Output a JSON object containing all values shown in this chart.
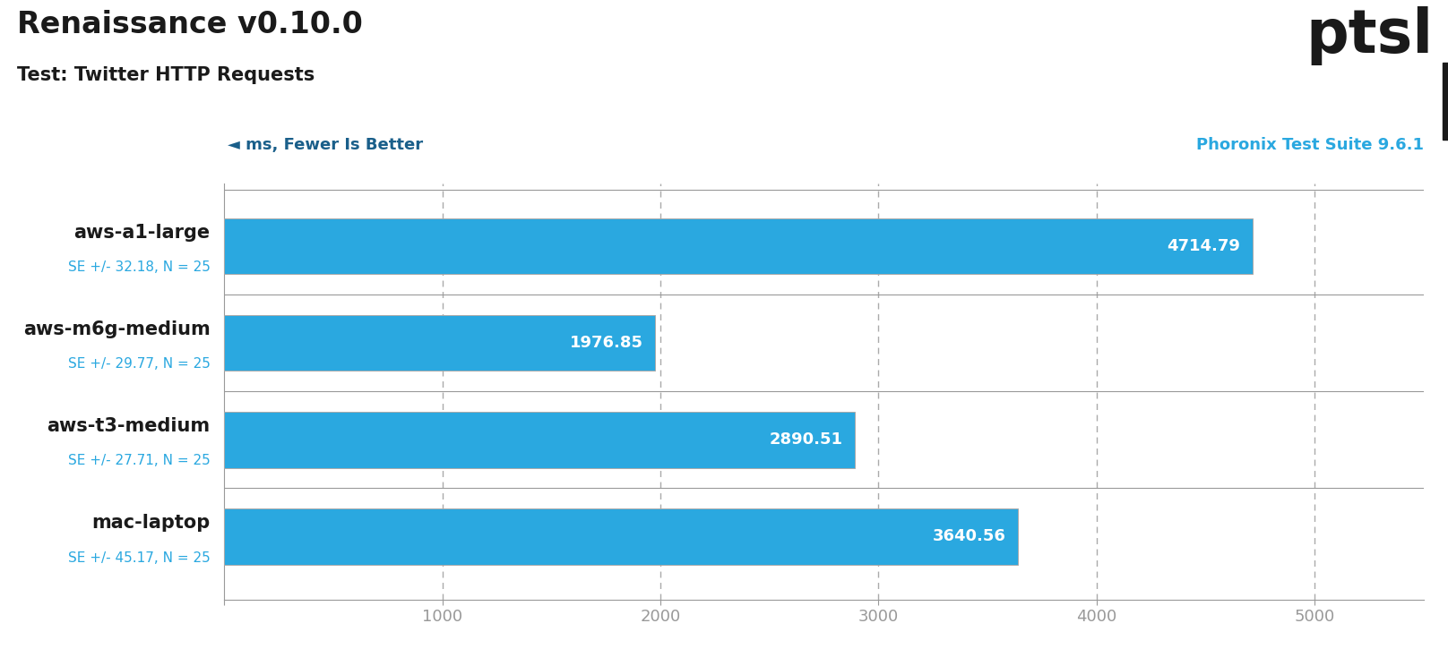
{
  "title": "Renaissance v0.10.0",
  "subtitle": "Test: Twitter HTTP Requests",
  "watermark": "Phoronix Test Suite 9.6.1",
  "axis_label": "◄ ms, Fewer Is Better",
  "categories": [
    "aws-a1-large",
    "aws-m6g-medium",
    "aws-t3-medium",
    "mac-laptop"
  ],
  "se_labels": [
    "SE +/- 32.18, N = 25",
    "SE +/- 29.77, N = 25",
    "SE +/- 27.71, N = 25",
    "SE +/- 45.17, N = 25"
  ],
  "values": [
    4714.79,
    1976.85,
    2890.51,
    3640.56
  ],
  "bar_color": "#2aa8e0",
  "bar_edge_color": "#aaaaaa",
  "value_color": "#ffffff",
  "label_color": "#1a1a1a",
  "se_color": "#2aa8e0",
  "grid_color": "#aaaaaa",
  "axis_color": "#999999",
  "watermark_color": "#2aa8e0",
  "arrow_color": "#1a5f8a",
  "xtick_color": "#2aa8e0",
  "xlim": [
    0,
    5500
  ],
  "xticks": [
    0,
    1000,
    2000,
    3000,
    4000,
    5000
  ],
  "background_color": "#ffffff",
  "title_fontsize": 24,
  "subtitle_fontsize": 15,
  "label_fontsize": 15,
  "se_fontsize": 11,
  "value_fontsize": 13,
  "tick_fontsize": 13,
  "watermark_fontsize": 13,
  "axis_label_fontsize": 13,
  "logo_fontsize": 52
}
